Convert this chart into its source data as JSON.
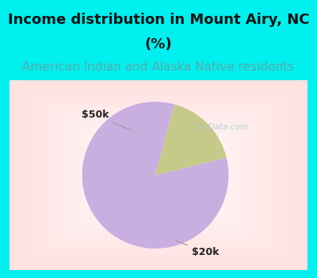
{
  "title_line1": "Income distribution in Mount Airy, NC",
  "title_line2": "(%)",
  "subtitle": "American Indian and Alaska Native residents",
  "slices": [
    83.0,
    17.0
  ],
  "slice_labels": [
    "$20k",
    "$50k"
  ],
  "colors": [
    "#c9aee0",
    "#c5ca88"
  ],
  "background_cyan": "#00efef",
  "background_chart_center": "#ffffff",
  "background_chart_edge": "#c8ecd8",
  "title_fontsize": 13,
  "subtitle_fontsize": 11,
  "subtitle_color": "#5aaaaa",
  "label_fontsize": 9,
  "watermark": "City-Data.com",
  "startangle": 75,
  "title_color": "#111111"
}
